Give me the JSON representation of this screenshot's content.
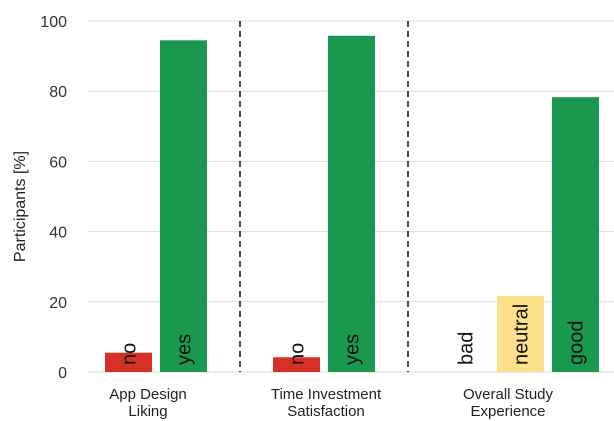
{
  "chart_data": {
    "type": "bar",
    "ylabel": "Participants [%]",
    "ylim": [
      0,
      100
    ],
    "yticks": [
      "0",
      "20",
      "40",
      "60",
      "80",
      "100"
    ],
    "grid": true,
    "groups": [
      {
        "label_lines": [
          "App Design",
          "Liking"
        ],
        "bars": [
          {
            "label": "no",
            "value": 5.5,
            "color": "#d73027"
          },
          {
            "label": "yes",
            "value": 94.5,
            "color": "#1a9850"
          }
        ]
      },
      {
        "label_lines": [
          "Time Investment",
          "Satisfaction"
        ],
        "bars": [
          {
            "label": "no",
            "value": 4.2,
            "color": "#d73027"
          },
          {
            "label": "yes",
            "value": 95.8,
            "color": "#1a9850"
          }
        ]
      },
      {
        "label_lines": [
          "Overall Study",
          "Experience"
        ],
        "bars": [
          {
            "label": "bad",
            "value": 0,
            "color": "#d73027"
          },
          {
            "label": "neutral",
            "value": 21.7,
            "color": "#fee08b"
          },
          {
            "label": "good",
            "value": 78.3,
            "color": "#1a9850"
          }
        ]
      }
    ]
  }
}
